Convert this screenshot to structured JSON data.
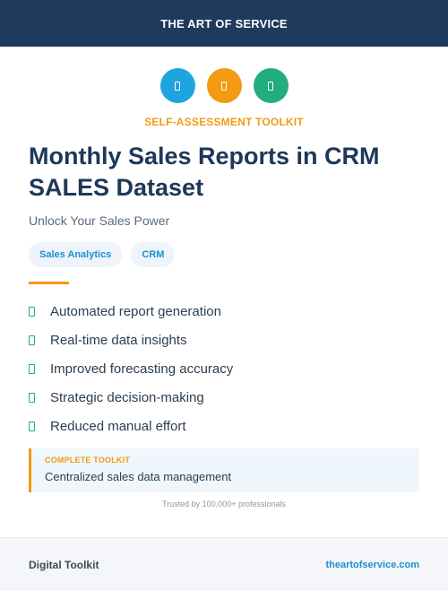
{
  "header": {
    "title": "THE ART OF SERVICE"
  },
  "icons": [
    {
      "name": "blue-badge-icon",
      "color": "#1ea5e0"
    },
    {
      "name": "orange-badge-icon",
      "color": "#f29a12"
    },
    {
      "name": "green-badge-icon",
      "color": "#21ad7c"
    }
  ],
  "kicker": "SELF-ASSESSMENT TOOLKIT",
  "title_line1": "Monthly Sales Reports in CRM",
  "title_line2": "SALES Dataset",
  "subtitle": "Unlock Your Sales Power",
  "tags": [
    "Sales Analytics",
    "CRM"
  ],
  "features": [
    "Automated report generation",
    "Real-time data insights",
    "Improved forecasting accuracy",
    "Strategic decision-making",
    "Reduced manual effort"
  ],
  "callout": {
    "label": "COMPLETE TOOLKIT",
    "text": "Centralized sales data management"
  },
  "trust": "Trusted by 100,000+ professionals",
  "footer": {
    "left": "Digital Toolkit",
    "right": "theartofservice.com"
  }
}
